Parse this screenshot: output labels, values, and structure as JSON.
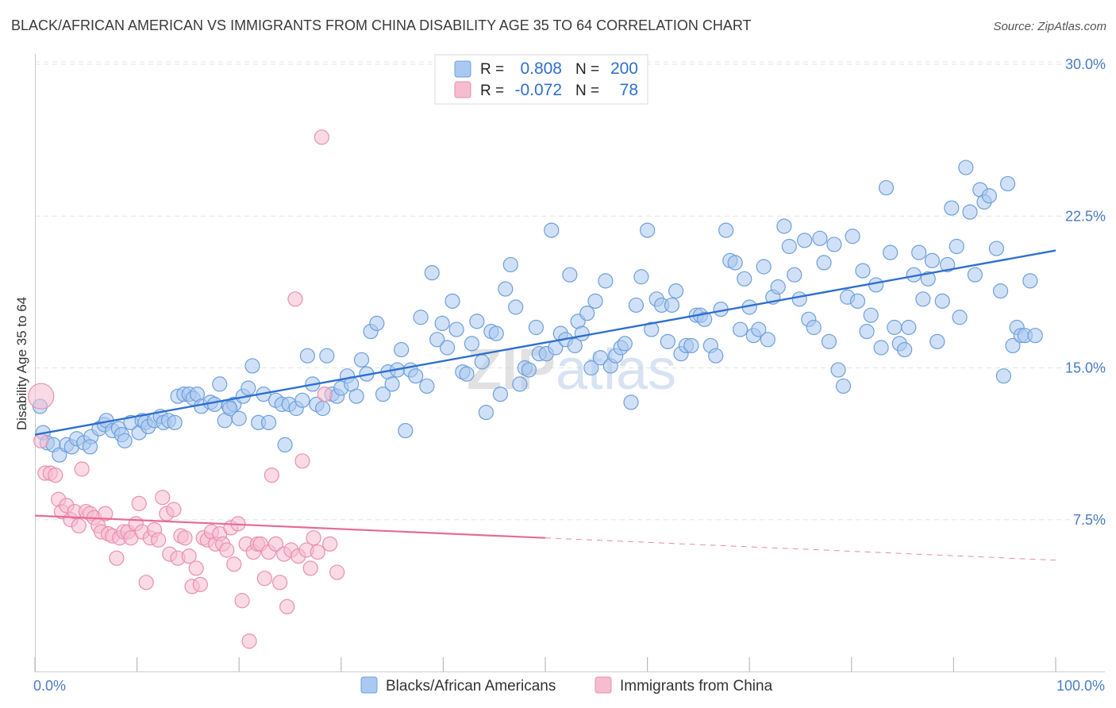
{
  "title": "BLACK/AFRICAN AMERICAN VS IMMIGRANTS FROM CHINA DISABILITY AGE 35 TO 64 CORRELATION CHART",
  "source": "Source: ZipAtlas.com",
  "watermark": "ZIPatlas",
  "legend_top": {
    "rows": [
      {
        "r_label": "R =",
        "r_value": "0.808",
        "n_label": "N =",
        "n_value": "200"
      },
      {
        "r_label": "R =",
        "r_value": "-0.072",
        "n_label": "N =",
        "n_value": "78"
      }
    ]
  },
  "legend_bottom": [
    "Blacks/African Americans",
    "Immigrants from China"
  ],
  "colors": {
    "blue_fill": "#a9c9f0",
    "blue_stroke": "#6f9fdc",
    "blue_line": "#2f6fcf",
    "pink_fill": "#f6bcd0",
    "pink_stroke": "#ea8fb0",
    "pink_line": "#e66b96",
    "grid": "#e3e3e3",
    "tick_text": "#4a7cc7"
  },
  "chart_data": {
    "type": "scatter",
    "title": "BLACK/AFRICAN AMERICAN VS IMMIGRANTS FROM CHINA DISABILITY AGE 35 TO 64 CORRELATION CHART",
    "xlabel": "",
    "ylabel": "Disability Age 35 to 64",
    "xlim": [
      0,
      100
    ],
    "ylim": [
      0,
      31
    ],
    "x_tick_labels": [
      "0.0%",
      "100.0%"
    ],
    "y_ticks": [
      7.5,
      15.0,
      22.5,
      30.0
    ],
    "y_tick_labels": [
      "7.5%",
      "15.0%",
      "22.5%",
      "30.0%"
    ],
    "grid": "horizontal dashed",
    "legend_placement": "top-center",
    "series": [
      {
        "name": "Blacks/African Americans",
        "trend": {
          "x": [
            0,
            100
          ],
          "y": [
            11.7,
            20.8
          ]
        },
        "points": [
          [
            0.5,
            13.1
          ],
          [
            0.8,
            11.8
          ],
          [
            1.2,
            11.3
          ],
          [
            1.8,
            11.2
          ],
          [
            2.4,
            10.7
          ],
          [
            3.1,
            11.2
          ],
          [
            3.6,
            11.1
          ],
          [
            4.1,
            11.5
          ],
          [
            4.8,
            11.3
          ],
          [
            5.5,
            11.6
          ],
          [
            5.4,
            11.1
          ],
          [
            6.3,
            12.0
          ],
          [
            6.8,
            12.2
          ],
          [
            7.0,
            12.4
          ],
          [
            7.6,
            11.9
          ],
          [
            8.2,
            12.0
          ],
          [
            8.5,
            11.7
          ],
          [
            8.8,
            11.4
          ],
          [
            9.4,
            12.3
          ],
          [
            10.2,
            11.8
          ],
          [
            10.5,
            12.4
          ],
          [
            10.8,
            12.3
          ],
          [
            11.1,
            12.1
          ],
          [
            11.7,
            12.4
          ],
          [
            12.3,
            12.6
          ],
          [
            12.6,
            12.3
          ],
          [
            13.1,
            12.4
          ],
          [
            13.7,
            12.3
          ],
          [
            14.0,
            13.6
          ],
          [
            14.6,
            13.7
          ],
          [
            15.1,
            13.7
          ],
          [
            15.5,
            13.5
          ],
          [
            15.9,
            13.7
          ],
          [
            16.3,
            13.1
          ],
          [
            17.2,
            13.3
          ],
          [
            17.6,
            13.2
          ],
          [
            18.1,
            14.2
          ],
          [
            18.6,
            12.4
          ],
          [
            19.0,
            13.1
          ],
          [
            19.5,
            13.2
          ],
          [
            19.1,
            13.0
          ],
          [
            20.0,
            12.5
          ],
          [
            20.4,
            13.6
          ],
          [
            20.9,
            14.0
          ],
          [
            21.3,
            15.1
          ],
          [
            21.9,
            12.3
          ],
          [
            22.4,
            13.7
          ],
          [
            22.9,
            12.3
          ],
          [
            23.6,
            13.4
          ],
          [
            24.2,
            13.2
          ],
          [
            24.5,
            11.2
          ],
          [
            24.9,
            13.2
          ],
          [
            25.6,
            13.0
          ],
          [
            26.2,
            13.4
          ],
          [
            26.7,
            15.6
          ],
          [
            27.2,
            14.2
          ],
          [
            27.6,
            13.2
          ],
          [
            28.2,
            13.0
          ],
          [
            28.6,
            15.6
          ],
          [
            29.1,
            13.7
          ],
          [
            29.6,
            13.6
          ],
          [
            30.0,
            14.0
          ],
          [
            30.6,
            14.6
          ],
          [
            31.0,
            14.2
          ],
          [
            31.5,
            13.6
          ],
          [
            32.0,
            15.4
          ],
          [
            32.5,
            14.7
          ],
          [
            32.9,
            16.8
          ],
          [
            33.5,
            17.2
          ],
          [
            34.1,
            13.7
          ],
          [
            34.6,
            14.8
          ],
          [
            35.0,
            14.2
          ],
          [
            35.5,
            14.9
          ],
          [
            35.9,
            15.9
          ],
          [
            36.3,
            11.9
          ],
          [
            36.8,
            14.9
          ],
          [
            37.3,
            14.6
          ],
          [
            37.8,
            17.5
          ],
          [
            38.4,
            14.1
          ],
          [
            38.9,
            19.7
          ],
          [
            39.4,
            16.4
          ],
          [
            39.9,
            17.2
          ],
          [
            40.4,
            16.0
          ],
          [
            40.9,
            18.3
          ],
          [
            41.3,
            16.9
          ],
          [
            41.9,
            14.8
          ],
          [
            42.3,
            14.7
          ],
          [
            42.8,
            16.2
          ],
          [
            43.3,
            17.3
          ],
          [
            43.8,
            15.3
          ],
          [
            44.2,
            12.8
          ],
          [
            44.7,
            16.8
          ],
          [
            45.2,
            16.7
          ],
          [
            45.6,
            13.7
          ],
          [
            46.1,
            18.9
          ],
          [
            46.6,
            20.1
          ],
          [
            47.1,
            18.0
          ],
          [
            47.5,
            14.2
          ],
          [
            48.0,
            15.0
          ],
          [
            48.4,
            14.9
          ],
          [
            49.1,
            17.0
          ],
          [
            49.4,
            15.7
          ],
          [
            50.1,
            15.7
          ],
          [
            50.6,
            21.8
          ],
          [
            51.0,
            16.0
          ],
          [
            51.5,
            16.7
          ],
          [
            52.0,
            16.4
          ],
          [
            52.4,
            19.6
          ],
          [
            52.9,
            16.1
          ],
          [
            53.2,
            17.3
          ],
          [
            53.6,
            16.7
          ],
          [
            54.1,
            17.7
          ],
          [
            54.5,
            15.0
          ],
          [
            54.9,
            18.3
          ],
          [
            55.4,
            15.5
          ],
          [
            55.9,
            19.3
          ],
          [
            56.4,
            15.1
          ],
          [
            56.9,
            15.6
          ],
          [
            57.4,
            16.0
          ],
          [
            57.8,
            16.2
          ],
          [
            58.4,
            13.3
          ],
          [
            58.9,
            18.1
          ],
          [
            59.4,
            19.5
          ],
          [
            60.0,
            21.8
          ],
          [
            60.4,
            16.9
          ],
          [
            60.9,
            18.4
          ],
          [
            61.4,
            18.1
          ],
          [
            62.0,
            16.3
          ],
          [
            62.4,
            18.1
          ],
          [
            62.8,
            18.8
          ],
          [
            63.3,
            15.7
          ],
          [
            63.8,
            16.1
          ],
          [
            64.3,
            16.1
          ],
          [
            64.8,
            17.6
          ],
          [
            65.2,
            17.6
          ],
          [
            65.6,
            17.4
          ],
          [
            66.2,
            16.1
          ],
          [
            66.7,
            15.6
          ],
          [
            67.2,
            17.9
          ],
          [
            67.7,
            21.8
          ],
          [
            68.1,
            20.3
          ],
          [
            68.6,
            20.2
          ],
          [
            69.1,
            16.9
          ],
          [
            69.5,
            19.4
          ],
          [
            70.0,
            18.0
          ],
          [
            70.4,
            16.6
          ],
          [
            70.9,
            16.9
          ],
          [
            71.4,
            20.0
          ],
          [
            71.8,
            16.4
          ],
          [
            72.3,
            18.5
          ],
          [
            72.8,
            19.0
          ],
          [
            73.4,
            22.0
          ],
          [
            73.9,
            21.0
          ],
          [
            74.4,
            19.6
          ],
          [
            74.9,
            18.4
          ],
          [
            75.4,
            21.3
          ],
          [
            75.8,
            17.4
          ],
          [
            76.3,
            17.0
          ],
          [
            76.9,
            21.4
          ],
          [
            77.3,
            20.2
          ],
          [
            77.8,
            16.3
          ],
          [
            78.3,
            21.1
          ],
          [
            78.7,
            14.9
          ],
          [
            79.2,
            14.1
          ],
          [
            79.6,
            18.5
          ],
          [
            80.1,
            21.5
          ],
          [
            80.6,
            18.3
          ],
          [
            81.1,
            19.8
          ],
          [
            81.5,
            16.8
          ],
          [
            81.9,
            17.6
          ],
          [
            82.4,
            19.1
          ],
          [
            82.9,
            16.0
          ],
          [
            83.4,
            23.9
          ],
          [
            83.8,
            20.7
          ],
          [
            84.2,
            17.0
          ],
          [
            84.7,
            16.2
          ],
          [
            85.2,
            15.9
          ],
          [
            85.6,
            17.0
          ],
          [
            86.1,
            19.6
          ],
          [
            86.6,
            20.7
          ],
          [
            87.0,
            18.4
          ],
          [
            87.5,
            19.4
          ],
          [
            87.9,
            20.3
          ],
          [
            88.4,
            16.3
          ],
          [
            88.9,
            18.3
          ],
          [
            89.4,
            20.1
          ],
          [
            89.8,
            22.9
          ],
          [
            90.3,
            21.0
          ],
          [
            90.6,
            17.5
          ],
          [
            91.2,
            24.9
          ],
          [
            91.6,
            22.7
          ],
          [
            92.1,
            19.6
          ],
          [
            92.6,
            23.8
          ],
          [
            93.0,
            23.2
          ],
          [
            93.5,
            23.5
          ],
          [
            94.2,
            20.9
          ],
          [
            94.6,
            18.8
          ],
          [
            94.9,
            14.6
          ],
          [
            95.3,
            24.1
          ],
          [
            95.8,
            16.1
          ],
          [
            96.2,
            17.0
          ],
          [
            96.6,
            16.6
          ],
          [
            97.0,
            16.6
          ],
          [
            97.5,
            19.3
          ],
          [
            98.0,
            16.6
          ]
        ]
      },
      {
        "name": "Immigrants from China",
        "trend": {
          "x": [
            0,
            50
          ],
          "y": [
            7.7,
            6.6
          ]
        },
        "trend_dashed": {
          "x": [
            50,
            100
          ],
          "y": [
            6.6,
            5.5
          ]
        },
        "points": [
          [
            0.6,
            13.6
          ],
          [
            0.6,
            11.4
          ],
          [
            1.0,
            9.8
          ],
          [
            1.5,
            9.8
          ],
          [
            2.0,
            9.7
          ],
          [
            2.3,
            8.5
          ],
          [
            2.6,
            7.9
          ],
          [
            3.1,
            8.2
          ],
          [
            3.5,
            7.5
          ],
          [
            3.9,
            7.9
          ],
          [
            4.3,
            7.2
          ],
          [
            4.6,
            10.0
          ],
          [
            5.0,
            7.9
          ],
          [
            5.4,
            7.8
          ],
          [
            5.8,
            7.6
          ],
          [
            6.2,
            7.2
          ],
          [
            6.5,
            6.9
          ],
          [
            6.9,
            7.8
          ],
          [
            7.2,
            6.8
          ],
          [
            7.6,
            6.7
          ],
          [
            8.0,
            5.6
          ],
          [
            8.3,
            6.6
          ],
          [
            8.7,
            6.9
          ],
          [
            9.1,
            6.9
          ],
          [
            9.4,
            6.6
          ],
          [
            9.9,
            7.3
          ],
          [
            10.2,
            8.3
          ],
          [
            10.5,
            6.9
          ],
          [
            10.9,
            4.4
          ],
          [
            11.3,
            6.6
          ],
          [
            11.7,
            7.0
          ],
          [
            12.1,
            6.5
          ],
          [
            12.5,
            8.6
          ],
          [
            12.9,
            7.8
          ],
          [
            13.2,
            5.8
          ],
          [
            13.6,
            8.0
          ],
          [
            14.0,
            5.6
          ],
          [
            14.3,
            6.7
          ],
          [
            14.7,
            6.6
          ],
          [
            15.1,
            5.7
          ],
          [
            15.4,
            4.2
          ],
          [
            15.8,
            5.1
          ],
          [
            16.2,
            4.3
          ],
          [
            16.5,
            6.6
          ],
          [
            16.9,
            6.5
          ],
          [
            17.3,
            6.9
          ],
          [
            17.7,
            6.3
          ],
          [
            18.1,
            6.8
          ],
          [
            18.4,
            6.3
          ],
          [
            18.8,
            6.0
          ],
          [
            19.2,
            7.1
          ],
          [
            19.5,
            5.3
          ],
          [
            19.9,
            7.3
          ],
          [
            20.3,
            3.5
          ],
          [
            20.7,
            6.3
          ],
          [
            21.0,
            1.5
          ],
          [
            21.4,
            5.9
          ],
          [
            21.8,
            6.3
          ],
          [
            22.1,
            6.3
          ],
          [
            22.5,
            4.6
          ],
          [
            22.9,
            5.9
          ],
          [
            23.2,
            9.7
          ],
          [
            23.6,
            6.3
          ],
          [
            24.0,
            4.4
          ],
          [
            24.4,
            5.8
          ],
          [
            24.7,
            3.2
          ],
          [
            25.1,
            6.0
          ],
          [
            25.5,
            18.4
          ],
          [
            25.8,
            5.7
          ],
          [
            26.2,
            10.4
          ],
          [
            26.6,
            6.0
          ],
          [
            27.0,
            5.1
          ],
          [
            27.3,
            6.6
          ],
          [
            27.7,
            5.9
          ],
          [
            28.1,
            26.4
          ],
          [
            28.4,
            13.7
          ],
          [
            28.9,
            6.3
          ],
          [
            29.6,
            4.9
          ]
        ]
      }
    ]
  }
}
